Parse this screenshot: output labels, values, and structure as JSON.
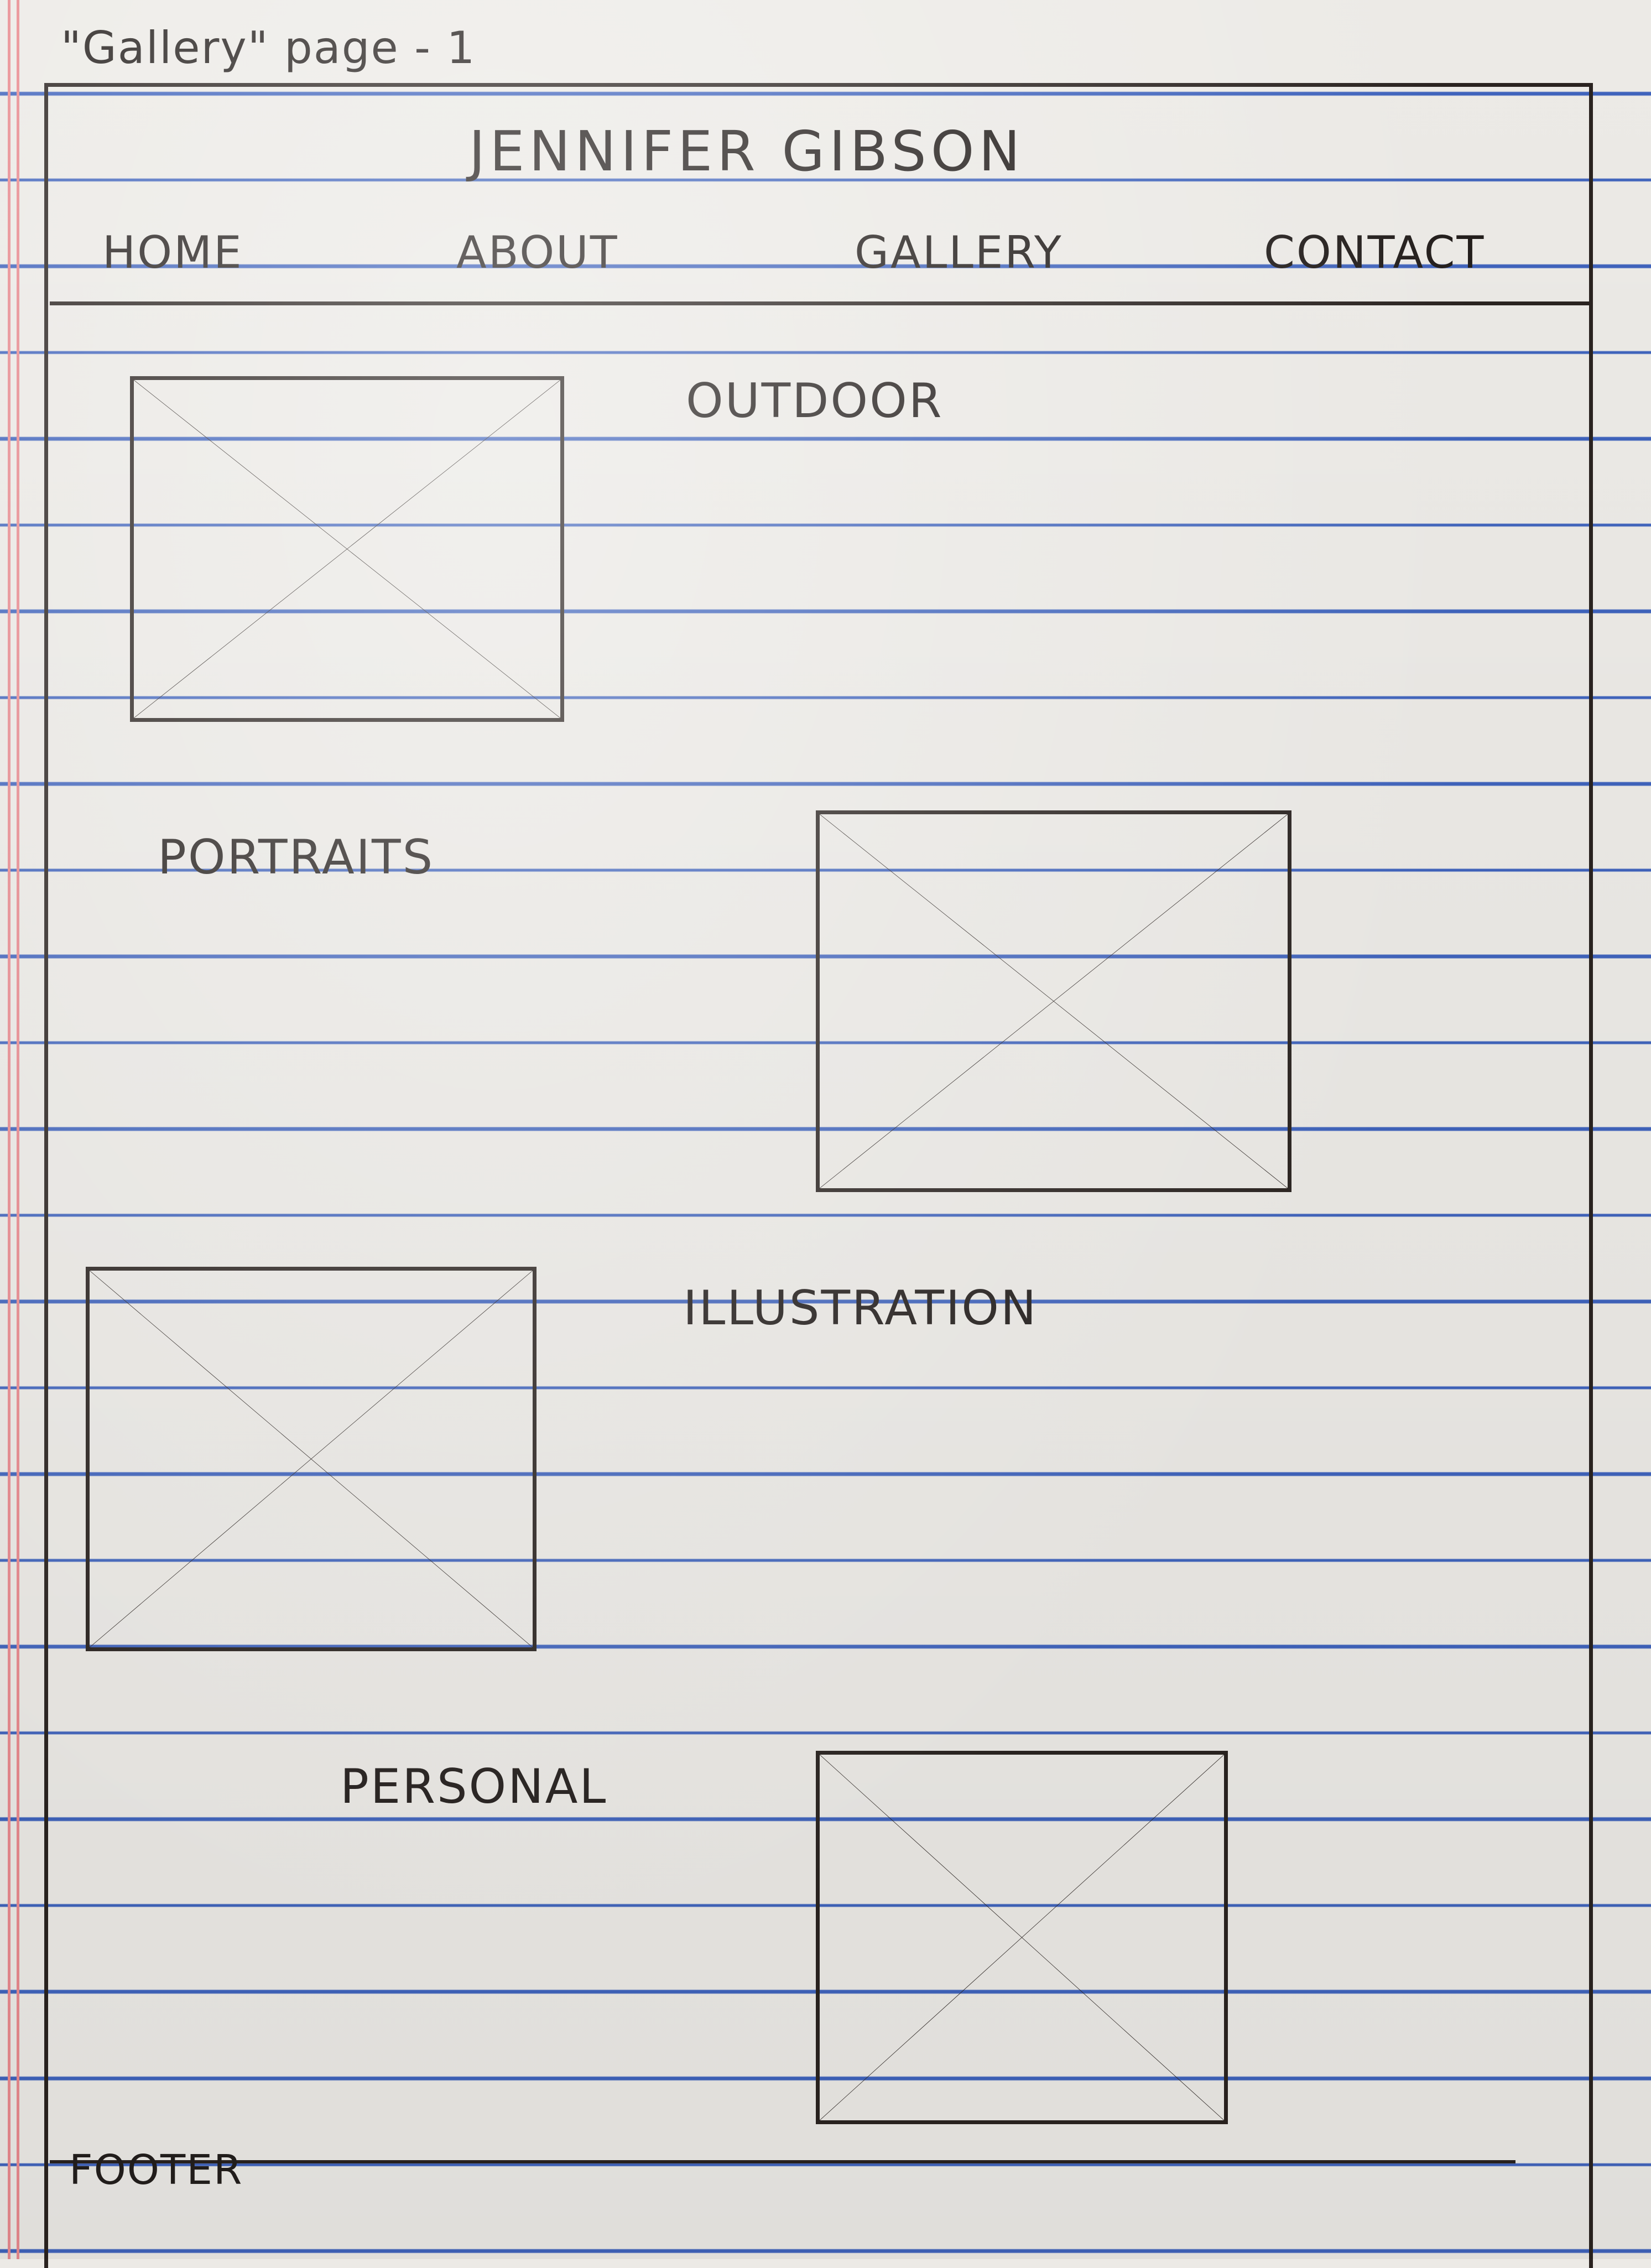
{
  "sketch_title": "\"Gallery\" page - 1",
  "header": {
    "site_title": "JENNIFER GIBSON"
  },
  "nav": {
    "items": [
      {
        "label": "HOME"
      },
      {
        "label": "ABOUT"
      },
      {
        "label": "GALLERY"
      },
      {
        "label": "CONTACT"
      }
    ]
  },
  "gallery": {
    "sections": [
      {
        "label": "OUTDOOR",
        "image_icon": "image-placeholder-icon"
      },
      {
        "label": "PORTRAITS",
        "image_icon": "image-placeholder-icon"
      },
      {
        "label": "ILLUSTRATION",
        "image_icon": "image-placeholder-icon"
      },
      {
        "label": "PERSONAL",
        "image_icon": "image-placeholder-icon"
      }
    ]
  },
  "footer": {
    "label": "FOOTER"
  },
  "colors": {
    "paper": "#eceae6",
    "rule_line": "#3f63bc",
    "margin_line": "#e88a8f",
    "ink": "#231e1c"
  }
}
